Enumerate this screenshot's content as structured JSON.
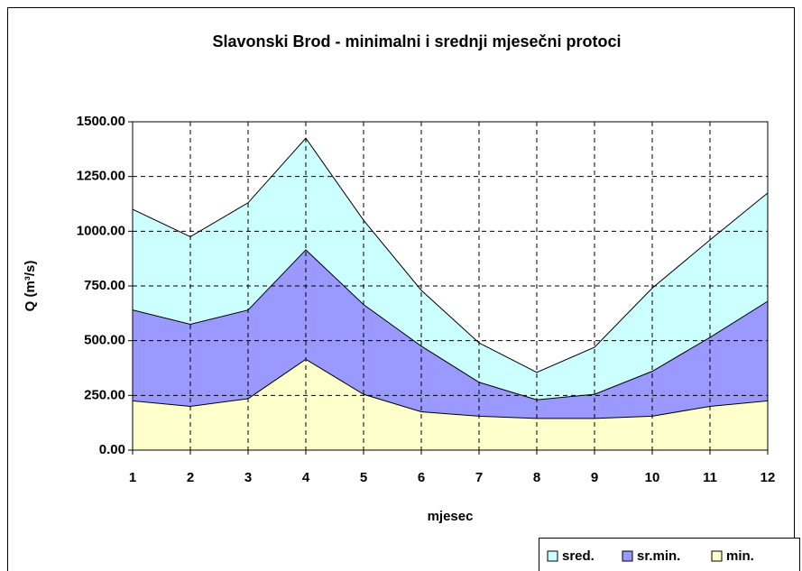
{
  "chart_data": {
    "type": "area",
    "title": "Slavonski Brod - minimalni i srednji mjesečni protoci",
    "x_label": "mjesec",
    "y_label": "Q (m³/s)",
    "categories": [
      "1",
      "2",
      "3",
      "4",
      "5",
      "6",
      "7",
      "8",
      "9",
      "10",
      "11",
      "12"
    ],
    "series": [
      {
        "name": "sred.",
        "color": "#ccffff",
        "values": [
          1100,
          975,
          1130,
          1425,
          1050,
          730,
          490,
          355,
          470,
          740,
          960,
          1175
        ]
      },
      {
        "name": "sr.min.",
        "color": "#9999ff",
        "values": [
          640,
          575,
          640,
          915,
          665,
          475,
          310,
          230,
          255,
          360,
          515,
          680
        ]
      },
      {
        "name": "min.",
        "color": "#ffffcc",
        "values": [
          225,
          200,
          235,
          415,
          255,
          175,
          155,
          145,
          145,
          155,
          200,
          225
        ]
      }
    ],
    "ylim": [
      0,
      1500
    ],
    "yticks": [
      {
        "value": 0,
        "label": "0.00"
      },
      {
        "value": 250,
        "label": "250.00"
      },
      {
        "value": 500,
        "label": "500.00"
      },
      {
        "value": 750,
        "label": "750.00"
      },
      {
        "value": 1000,
        "label": "1000.00"
      },
      {
        "value": 1250,
        "label": "1250.00"
      },
      {
        "value": 1500,
        "label": "1500.00"
      }
    ],
    "grid": true,
    "legend": "bottom-right"
  }
}
